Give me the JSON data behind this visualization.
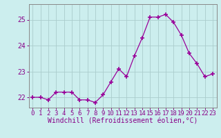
{
  "x": [
    0,
    1,
    2,
    3,
    4,
    5,
    6,
    7,
    8,
    9,
    10,
    11,
    12,
    13,
    14,
    15,
    16,
    17,
    18,
    19,
    20,
    21,
    22,
    23
  ],
  "y": [
    22.0,
    22.0,
    21.9,
    22.2,
    22.2,
    22.2,
    21.9,
    21.9,
    21.8,
    22.1,
    22.6,
    23.1,
    22.8,
    23.6,
    24.3,
    25.1,
    25.1,
    25.2,
    24.9,
    24.4,
    23.7,
    23.3,
    22.8,
    22.9
  ],
  "line_color": "#990099",
  "marker": "+",
  "marker_size": 5,
  "background_color": "#cceeee",
  "grid_color": "#aacccc",
  "xlabel": "Windchill (Refroidissement éolien,°C)",
  "ylim": [
    21.6,
    25.6
  ],
  "yticks": [
    22,
    23,
    24,
    25
  ],
  "xticks": [
    0,
    1,
    2,
    3,
    4,
    5,
    6,
    7,
    8,
    9,
    10,
    11,
    12,
    13,
    14,
    15,
    16,
    17,
    18,
    19,
    20,
    21,
    22,
    23
  ],
  "label_color": "#880088",
  "tick_color": "#880088",
  "spine_color": "#888888",
  "font_size": 6.5
}
